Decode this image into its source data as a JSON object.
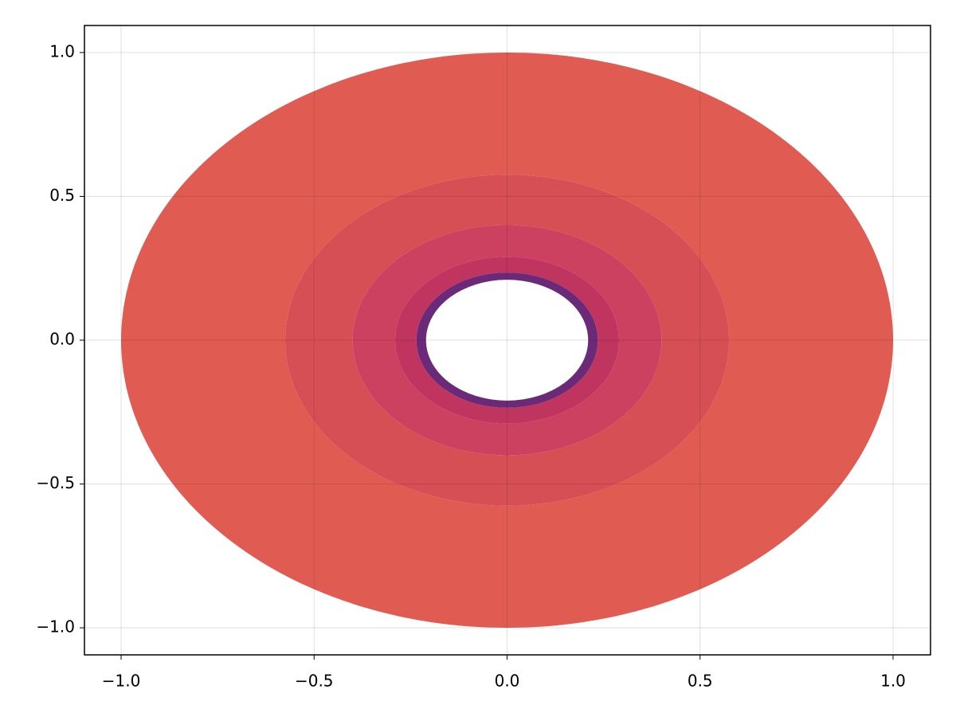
{
  "chart_data": {
    "type": "contourf",
    "xlim": [
      -1.095,
      1.097
    ],
    "ylim": [
      -1.094,
      1.094
    ],
    "xticks": [
      {
        "value": -1,
        "label": "−1.0"
      },
      {
        "value": -0.5,
        "label": "−0.5"
      },
      {
        "value": 0,
        "label": "0.0"
      },
      {
        "value": 0.5,
        "label": "0.5"
      },
      {
        "value": 1,
        "label": "1.0"
      }
    ],
    "yticks": [
      {
        "value": -1,
        "label": "−1.0"
      },
      {
        "value": -0.5,
        "label": "−0.5"
      },
      {
        "value": 0,
        "label": "0.0"
      },
      {
        "value": 0.5,
        "label": "0.5"
      },
      {
        "value": 1,
        "label": "1.0"
      }
    ],
    "grid": true,
    "rings": [
      {
        "r_outer": 1,
        "r_inner": 0.575,
        "color": "#e05c52"
      },
      {
        "r_outer": 0.575,
        "r_inner": 0.4,
        "color": "#d64f55"
      },
      {
        "r_outer": 0.4,
        "r_inner": 0.29,
        "color": "#cc4060"
      },
      {
        "r_outer": 0.29,
        "r_inner": 0.235,
        "color": "#c0355f"
      },
      {
        "r_outer": 0.235,
        "r_inner": 0.21,
        "color": "#6b2a78"
      }
    ]
  }
}
